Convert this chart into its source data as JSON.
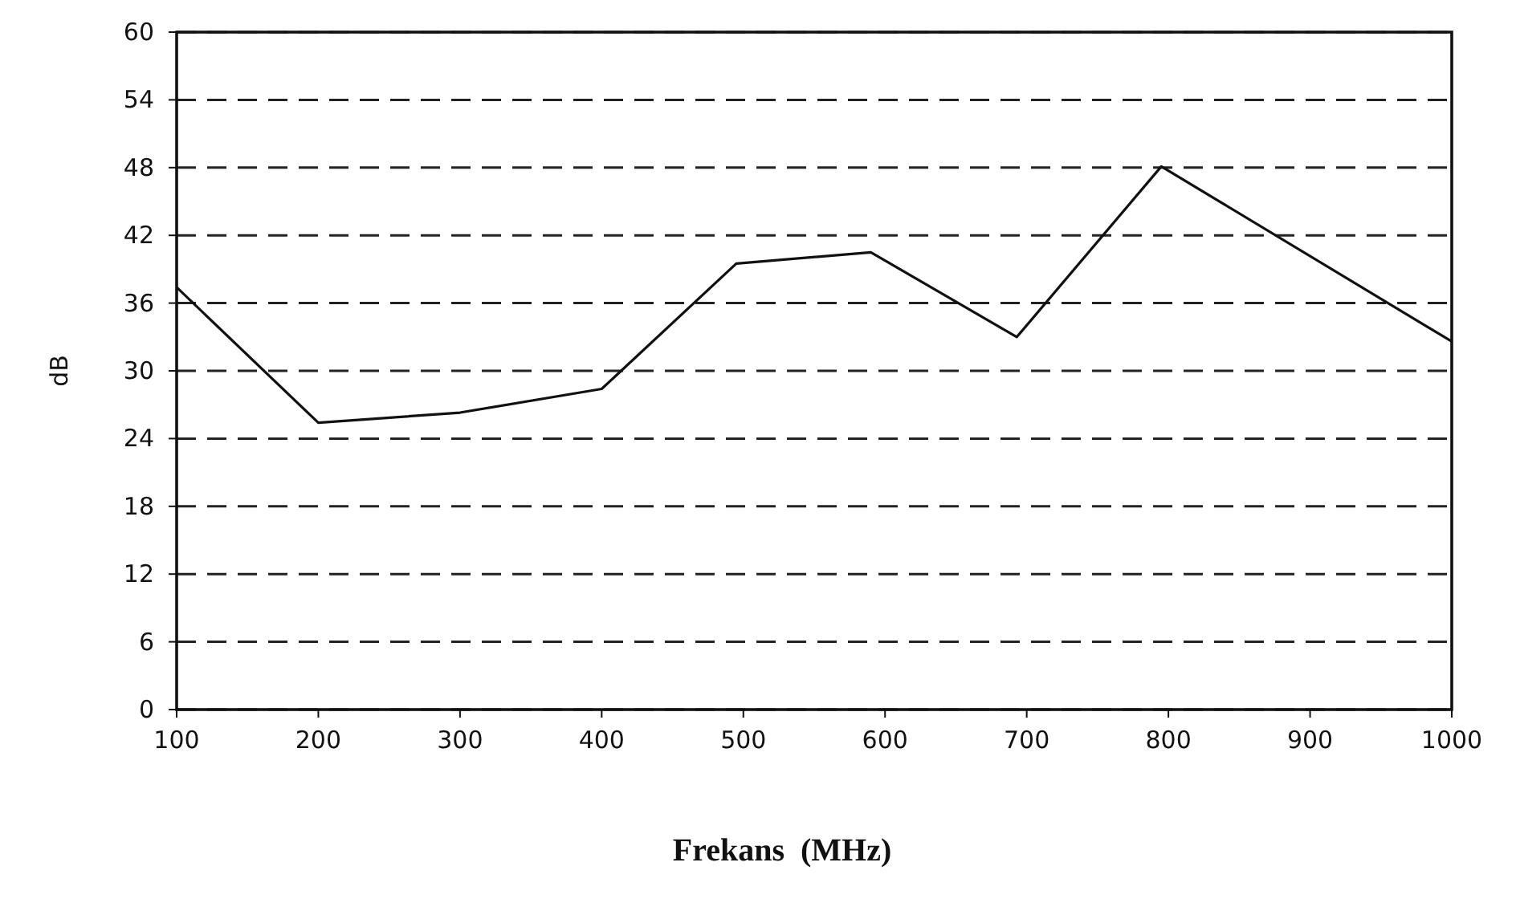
{
  "chart_data": {
    "type": "line",
    "xlabel": "Frekans  (MHz)",
    "ylabel": "dB",
    "x": [
      100,
      200,
      300,
      400,
      495,
      590,
      693,
      795,
      1000
    ],
    "series": [
      {
        "color": "#111111",
        "values": [
          37.4,
          25.4,
          26.3,
          28.4,
          39.5,
          40.5,
          33,
          48.1,
          32.6
        ]
      }
    ],
    "xlim": [
      100,
      1000
    ],
    "xticks": [
      100,
      200,
      300,
      400,
      500,
      600,
      700,
      800,
      900,
      1000
    ],
    "ylim": [
      0,
      60
    ],
    "yticks": [
      0,
      6,
      12,
      18,
      24,
      30,
      36,
      42,
      48,
      54,
      60
    ],
    "grid": "y",
    "marker": "none",
    "line_style": "solid"
  }
}
